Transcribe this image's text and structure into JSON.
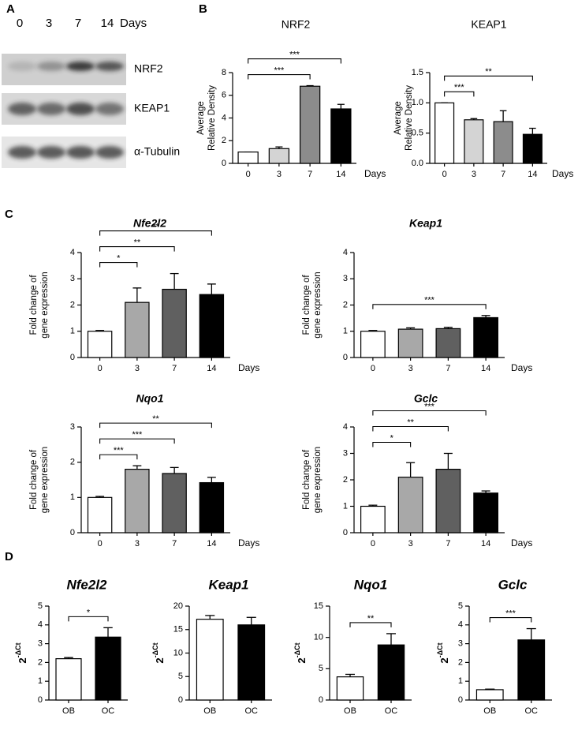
{
  "panel_labels": [
    "A",
    "B",
    "C",
    "D"
  ],
  "blot": {
    "time_points": [
      "0",
      "3",
      "7",
      "14"
    ],
    "unit": "Days",
    "proteins": [
      "NRF2",
      "KEAP1",
      "α-Tubulin"
    ]
  },
  "chart_data": [
    {
      "type": "bar",
      "title": "NRF2",
      "ylabel": [
        "Average",
        "Relative Density"
      ],
      "xlabel": "Days",
      "categories": [
        "0",
        "3",
        "7",
        "14"
      ],
      "values": [
        1,
        1.3,
        6.8,
        4.8
      ],
      "errors": [
        0,
        0.15,
        0.05,
        0.4
      ],
      "colors": [
        "#ffffff",
        "#d4d4d4",
        "#8c8c8c",
        "#000000"
      ],
      "ylim": [
        0,
        8
      ],
      "yticks": [
        0,
        2,
        4,
        6,
        8
      ],
      "annotations": [
        {
          "between": [
            "0",
            "7"
          ],
          "label": "***"
        },
        {
          "between": [
            "0",
            "14"
          ],
          "label": "***"
        }
      ]
    },
    {
      "type": "bar",
      "title": "KEAP1",
      "ylabel": [
        "Average",
        "Relative Density"
      ],
      "xlabel": "Days",
      "categories": [
        "0",
        "3",
        "7",
        "14"
      ],
      "values": [
        1,
        0.72,
        0.69,
        0.48
      ],
      "errors": [
        0,
        0.02,
        0.18,
        0.1
      ],
      "colors": [
        "#ffffff",
        "#d4d4d4",
        "#8c8c8c",
        "#000000"
      ],
      "ylim": [
        0,
        1.5
      ],
      "yticks": [
        {
          "value": 0,
          "label": "0.0"
        },
        0.5,
        {
          "value": 1,
          "label": "1.0"
        },
        1.5
      ],
      "annotations": [
        {
          "between": [
            "0",
            "3"
          ],
          "label": "***"
        },
        {
          "between": [
            "0",
            "14"
          ],
          "label": "**"
        }
      ]
    },
    {
      "type": "bar",
      "title": "Nfe2l2",
      "ylabel": [
        "Fold change of",
        "gene  expression"
      ],
      "xlabel": "Days",
      "categories": [
        "0",
        "3",
        "7",
        "14"
      ],
      "values": [
        1,
        2.1,
        2.6,
        2.4
      ],
      "errors": [
        0.03,
        0.55,
        0.6,
        0.4
      ],
      "colors": [
        "#ffffff",
        "#a8a8a8",
        "#606060",
        "#000000"
      ],
      "ylim": [
        0,
        4
      ],
      "yticks": [
        0,
        1,
        2,
        3,
        4
      ],
      "annotations": [
        {
          "between": [
            "0",
            "3"
          ],
          "label": "*"
        },
        {
          "between": [
            "0",
            "7"
          ],
          "label": "**"
        },
        {
          "between": [
            "0",
            "14"
          ],
          "label": "**"
        }
      ]
    },
    {
      "type": "bar",
      "title": "Keap1",
      "ylabel": [
        "Fold change of",
        "gene  expression"
      ],
      "xlabel": "Days",
      "categories": [
        "0",
        "3",
        "7",
        "14"
      ],
      "values": [
        1,
        1.08,
        1.1,
        1.52
      ],
      "errors": [
        0.03,
        0.05,
        0.05,
        0.08
      ],
      "colors": [
        "#ffffff",
        "#a8a8a8",
        "#606060",
        "#000000"
      ],
      "ylim": [
        0,
        4
      ],
      "yticks": [
        0,
        1,
        2,
        3,
        4
      ],
      "annotations": [
        {
          "between": [
            "0",
            "14"
          ],
          "label": "***"
        }
      ]
    },
    {
      "type": "bar",
      "title": "Nqo1",
      "ylabel": [
        "Fold change of",
        "gene  expression"
      ],
      "xlabel": "Days",
      "categories": [
        "0",
        "3",
        "7",
        "14"
      ],
      "values": [
        1,
        1.8,
        1.68,
        1.42
      ],
      "errors": [
        0.03,
        0.1,
        0.17,
        0.15
      ],
      "colors": [
        "#ffffff",
        "#a8a8a8",
        "#606060",
        "#000000"
      ],
      "ylim": [
        0,
        3
      ],
      "yticks": [
        0,
        1,
        2,
        3
      ],
      "annotations": [
        {
          "between": [
            "0",
            "3"
          ],
          "label": "***"
        },
        {
          "between": [
            "0",
            "7"
          ],
          "label": "***"
        },
        {
          "between": [
            "0",
            "14"
          ],
          "label": "**"
        }
      ]
    },
    {
      "type": "bar",
      "title": "Gclc",
      "ylabel": [
        "Fold change of",
        "gene  expression"
      ],
      "xlabel": "Days",
      "categories": [
        "0",
        "3",
        "7",
        "14"
      ],
      "values": [
        1,
        2.1,
        2.4,
        1.5
      ],
      "errors": [
        0.04,
        0.55,
        0.6,
        0.08
      ],
      "colors": [
        "#ffffff",
        "#a8a8a8",
        "#606060",
        "#000000"
      ],
      "ylim": [
        0,
        4
      ],
      "yticks": [
        0,
        1,
        2,
        3,
        4
      ],
      "annotations": [
        {
          "between": [
            "0",
            "3"
          ],
          "label": "*"
        },
        {
          "between": [
            "0",
            "7"
          ],
          "label": "**"
        },
        {
          "between": [
            "0",
            "14"
          ],
          "label": "***"
        }
      ]
    },
    {
      "type": "bar",
      "title": "Nfe2l2",
      "ylabel": "2",
      "ylabel_sup": "-ΔCt",
      "categories": [
        "OB",
        "OC"
      ],
      "values": [
        2.2,
        3.35
      ],
      "errors": [
        0.06,
        0.5
      ],
      "colors": [
        "#ffffff",
        "#000000"
      ],
      "ylim": [
        0,
        5
      ],
      "yticks": [
        0,
        1,
        2,
        3,
        4,
        5
      ],
      "annotations": [
        {
          "between": [
            "OB",
            "OC"
          ],
          "label": "*"
        }
      ]
    },
    {
      "type": "bar",
      "title": "Keap1",
      "ylabel": "2",
      "ylabel_sup": "-ΔCt",
      "categories": [
        "OB",
        "OC"
      ],
      "values": [
        17.2,
        16
      ],
      "errors": [
        0.8,
        1.6
      ],
      "colors": [
        "#ffffff",
        "#000000"
      ],
      "ylim": [
        0,
        20
      ],
      "yticks": [
        0,
        5,
        10,
        15,
        20
      ],
      "annotations": []
    },
    {
      "type": "bar",
      "title": "Nqo1",
      "ylabel": "2",
      "ylabel_sup": "-ΔCt",
      "categories": [
        "OB",
        "OC"
      ],
      "values": [
        3.7,
        8.8
      ],
      "errors": [
        0.4,
        1.8
      ],
      "colors": [
        "#ffffff",
        "#000000"
      ],
      "ylim": [
        0,
        15
      ],
      "yticks": [
        0,
        5,
        10,
        15
      ],
      "annotations": [
        {
          "between": [
            "OB",
            "OC"
          ],
          "label": "**"
        }
      ]
    },
    {
      "type": "bar",
      "title": "Gclc",
      "ylabel": "2",
      "ylabel_sup": "-ΔCt",
      "categories": [
        "OB",
        "OC"
      ],
      "values": [
        0.55,
        3.2
      ],
      "errors": [
        0.03,
        0.6
      ],
      "colors": [
        "#ffffff",
        "#000000"
      ],
      "ylim": [
        0,
        5
      ],
      "yticks": [
        0,
        1,
        2,
        3,
        4,
        5
      ],
      "annotations": [
        {
          "between": [
            "OB",
            "OC"
          ],
          "label": "***"
        }
      ]
    }
  ]
}
